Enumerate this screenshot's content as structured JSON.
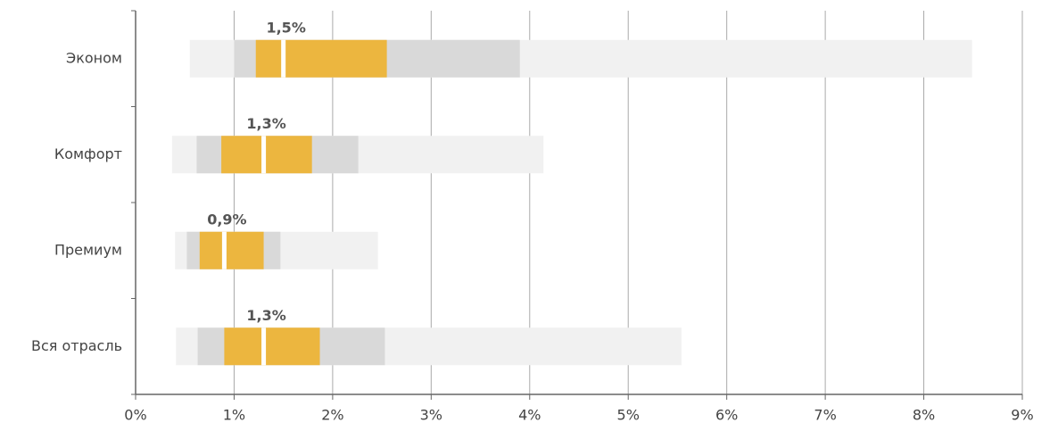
{
  "chart_data": {
    "type": "range",
    "categories": [
      "Эконом",
      "Комфорт",
      "Премиум",
      "Вся отрасль"
    ],
    "min": [
      0.55,
      0.37,
      0.4,
      0.41
    ],
    "low": [
      1.0,
      0.62,
      0.52,
      0.63
    ],
    "q1": [
      1.22,
      0.87,
      0.65,
      0.9
    ],
    "median": [
      1.5,
      1.3,
      0.9,
      1.3
    ],
    "median_labels": [
      "1,5%",
      "1,3%",
      "0,9%",
      "1,3%"
    ],
    "q3": [
      2.55,
      1.79,
      1.3,
      1.87
    ],
    "high": [
      3.9,
      2.26,
      1.47,
      2.53
    ],
    "max": [
      8.49,
      4.14,
      2.46,
      5.54
    ],
    "colors": {
      "outer": "#f1f1f1",
      "inner": "#d9d9d9",
      "core": "#ecb63f"
    },
    "xlim": [
      0,
      9
    ],
    "xticks": [
      {
        "value": 0,
        "label": "0%"
      },
      {
        "value": 1,
        "label": "1%"
      },
      {
        "value": 2,
        "label": "2%"
      },
      {
        "value": 3,
        "label": "3%"
      },
      {
        "value": 4,
        "label": "4%"
      },
      {
        "value": 5,
        "label": "5%"
      },
      {
        "value": 6,
        "label": "6%"
      },
      {
        "value": 7,
        "label": "7%"
      },
      {
        "value": 8,
        "label": "8%"
      },
      {
        "value": 9,
        "label": "9%"
      }
    ],
    "grid": true
  }
}
